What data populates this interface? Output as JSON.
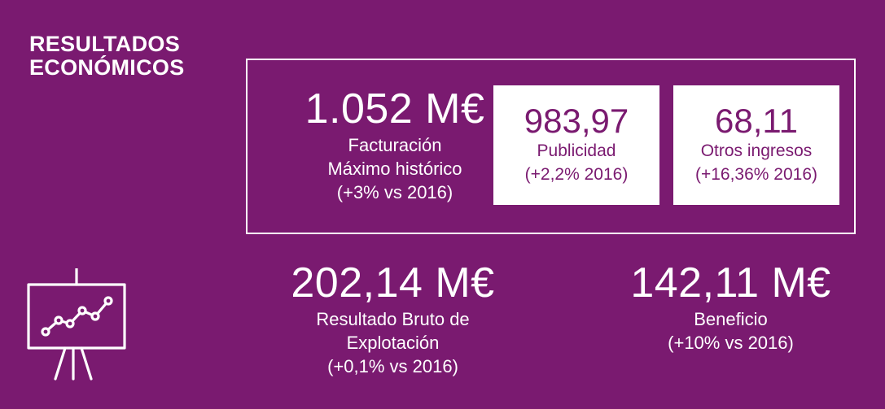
{
  "header": {
    "title_line1": "RESULTADOS",
    "title_line2": "ECONÓMICOS"
  },
  "facturacion": {
    "value": "1.052 M€",
    "label": "Facturación",
    "note": "Máximo histórico",
    "change": "(+3% vs 2016)"
  },
  "publicidad": {
    "value": "983,97",
    "label": "Publicidad",
    "change": "(+2,2% 2016)"
  },
  "otros": {
    "value": "68,11",
    "label": "Otros ingresos",
    "change": "(+16,36% 2016)"
  },
  "ebitda": {
    "value": "202,14 M€",
    "label_line1": "Resultado Bruto de",
    "label_line2": "Explotación",
    "change": "(+0,1% vs 2016)"
  },
  "beneficio": {
    "value": "142,11 M€",
    "label": "Beneficio",
    "change": "(+10% vs 2016)"
  },
  "colors": {
    "background": "#7a1a70",
    "text": "#ffffff",
    "card_bg": "#ffffff",
    "card_text": "#7a1a70"
  },
  "icons": [
    "presentation-chart-icon"
  ]
}
